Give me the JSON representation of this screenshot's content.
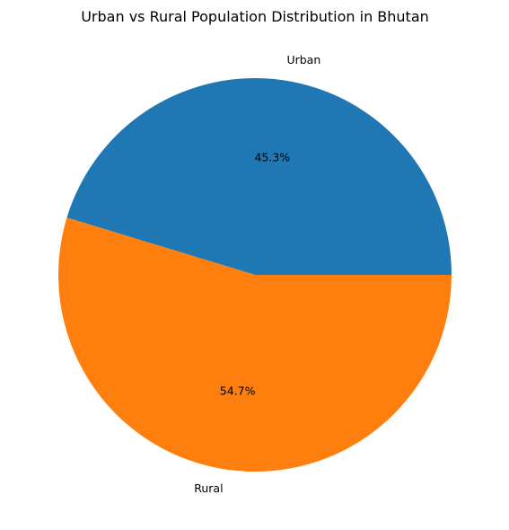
{
  "chart_data": {
    "type": "pie",
    "title": "Urban vs Rural Population Distribution in Bhutan",
    "labels": [
      "Urban",
      "Rural"
    ],
    "values": [
      45.3,
      54.7
    ],
    "percent_labels": [
      "45.3%",
      "54.7%"
    ],
    "colors": [
      "#1f77b4",
      "#ff7f0e"
    ],
    "start_angle_deg": 0,
    "direction": "counterclockwise",
    "legend": "none"
  }
}
